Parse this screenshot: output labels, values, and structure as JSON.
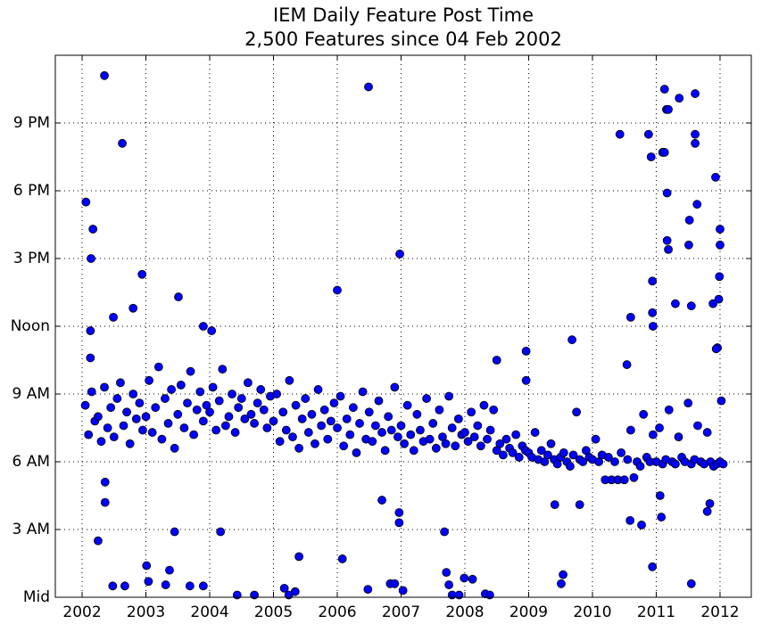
{
  "chart_data": {
    "type": "scatter",
    "title": "IEM Daily Feature Post Time",
    "subtitle": "2,500 Features since 04 Feb 2002",
    "color": "#0000ff",
    "grid": true,
    "xlim": [
      2001.58,
      2012.49
    ],
    "ylim": [
      0,
      24
    ],
    "xticks": [
      2002,
      2003,
      2004,
      2005,
      2006,
      2007,
      2008,
      2009,
      2010,
      2011,
      2012
    ],
    "yticks": [
      {
        "value": 0,
        "label": "Mid"
      },
      {
        "value": 3,
        "label": "3 AM"
      },
      {
        "value": 6,
        "label": "6 AM"
      },
      {
        "value": 9,
        "label": "9 AM"
      },
      {
        "value": 12,
        "label": "Noon"
      },
      {
        "value": 15,
        "label": "3 PM"
      },
      {
        "value": 18,
        "label": "6 PM"
      },
      {
        "value": 21,
        "label": "9 PM"
      }
    ],
    "x": [
      2002.05,
      2002.1,
      2002.15,
      2002.2,
      2002.25,
      2002.3,
      2002.35,
      2002.4,
      2002.45,
      2002.5,
      2002.55,
      2002.6,
      2002.65,
      2002.7,
      2002.75,
      2002.8,
      2002.85,
      2002.9,
      2002.95,
      2003.0,
      2003.05,
      2003.1,
      2003.15,
      2003.2,
      2003.25,
      2003.3,
      2003.35,
      2003.4,
      2003.45,
      2003.5,
      2003.55,
      2003.6,
      2003.65,
      2003.7,
      2003.75,
      2003.8,
      2003.85,
      2003.9,
      2003.95,
      2004.0,
      2004.05,
      2004.1,
      2004.15,
      2004.2,
      2004.25,
      2004.3,
      2004.35,
      2004.4,
      2004.45,
      2004.5,
      2004.55,
      2004.6,
      2004.65,
      2004.7,
      2004.75,
      2004.8,
      2004.85,
      2004.9,
      2004.95,
      2005.0,
      2005.05,
      2005.1,
      2005.15,
      2005.2,
      2005.25,
      2005.3,
      2005.35,
      2005.4,
      2005.45,
      2005.5,
      2005.55,
      2005.6,
      2005.65,
      2005.7,
      2005.75,
      2005.8,
      2005.85,
      2005.9,
      2005.95,
      2006.0,
      2006.05,
      2006.1,
      2006.15,
      2006.2,
      2006.25,
      2006.3,
      2006.35,
      2006.4,
      2006.45,
      2006.5,
      2006.55,
      2006.6,
      2006.65,
      2006.7,
      2006.75,
      2006.8,
      2006.85,
      2006.9,
      2006.95,
      2007.0,
      2007.05,
      2007.1,
      2007.15,
      2007.2,
      2007.25,
      2007.3,
      2007.35,
      2007.4,
      2007.45,
      2007.5,
      2007.55,
      2007.6,
      2007.65,
      2007.7,
      2007.75,
      2007.8,
      2007.85,
      2007.9,
      2007.95,
      2008.0,
      2008.05,
      2008.1,
      2008.15,
      2008.2,
      2008.25,
      2008.3,
      2008.35,
      2008.4,
      2008.45,
      2008.5,
      2008.55,
      2008.6,
      2008.65,
      2008.7,
      2008.75,
      2008.8,
      2008.85,
      2008.9,
      2008.95,
      2009.0,
      2009.05,
      2009.1,
      2009.15,
      2009.2,
      2009.25,
      2009.3,
      2009.35,
      2009.4,
      2009.45,
      2009.5,
      2009.55,
      2009.6,
      2009.65,
      2009.7,
      2009.75,
      2009.8,
      2009.85,
      2009.9,
      2009.95,
      2010.0,
      2010.05,
      2010.1,
      2010.15,
      2010.2,
      2010.25,
      2010.3,
      2010.35,
      2010.4,
      2010.45,
      2010.5,
      2010.55,
      2010.6,
      2010.65,
      2010.7,
      2010.75,
      2010.8,
      2010.85,
      2010.9,
      2010.95,
      2011.0,
      2011.05,
      2011.1,
      2011.15,
      2011.2,
      2011.25,
      2011.3,
      2011.35,
      2011.4,
      2011.45,
      2011.5,
      2011.55,
      2011.6,
      2011.65,
      2011.7,
      2011.75,
      2011.8,
      2011.85,
      2011.9,
      2011.95,
      2012.0,
      2012.05,
      2002.06,
      2002.17,
      2002.14,
      2002.13,
      2002.13,
      2002.35,
      2002.63,
      2002.25,
      2002.36,
      2002.36,
      2002.48,
      2002.67,
      2002.49,
      2002.8,
      2002.94,
      2003.01,
      2003.04,
      2003.37,
      2003.51,
      2003.45,
      2003.31,
      2003.69,
      2003.9,
      2004.03,
      2003.9,
      2004.17,
      2004.43,
      2004.7,
      2006.0,
      2006.08,
      2005.17,
      2005.24,
      2005.34,
      2005.4,
      2006.49,
      2006.48,
      2006.98,
      2006.83,
      2006.9,
      2007.03,
      2006.97,
      2006.97,
      2006.7,
      2007.68,
      2007.71,
      2007.75,
      2007.8,
      2007.91,
      2007.99,
      2008.12,
      2008.32,
      2008.39,
      2008.5,
      2008.96,
      2008.96,
      2009.51,
      2009.54,
      2009.68,
      2009.41,
      2009.8,
      2010.43,
      2010.6,
      2010.54,
      2010.59,
      2010.77,
      2010.88,
      2010.92,
      2010.94,
      2010.94,
      2010.95,
      2010.94,
      2011.08,
      2011.06,
      2011.13,
      2011.16,
      2011.19,
      2011.1,
      2011.13,
      2011.17,
      2011.17,
      2011.19,
      2011.3,
      2011.36,
      2011.61,
      2011.61,
      2011.61,
      2011.52,
      2011.51,
      2011.64,
      2011.55,
      2011.55,
      2011.93,
      2012.0,
      2012.0,
      2011.99,
      2011.98,
      2011.89,
      2011.96,
      2011.94,
      2011.84,
      2011.8,
      2012.02
    ],
    "values": [
      8.5,
      7.2,
      9.1,
      7.8,
      8.0,
      6.9,
      9.3,
      7.5,
      8.4,
      7.1,
      8.8,
      9.5,
      7.6,
      8.2,
      6.8,
      9.0,
      7.9,
      8.6,
      7.4,
      8.0,
      9.6,
      7.3,
      8.4,
      10.2,
      7.0,
      8.8,
      7.7,
      9.2,
      6.6,
      8.1,
      9.4,
      7.5,
      8.6,
      10.0,
      7.2,
      8.3,
      9.1,
      7.8,
      8.5,
      8.2,
      9.3,
      7.4,
      8.7,
      10.1,
      7.6,
      8.0,
      9.0,
      7.3,
      8.4,
      8.8,
      7.9,
      9.5,
      8.1,
      7.7,
      8.6,
      9.2,
      8.3,
      7.5,
      8.9,
      7.8,
      9.0,
      6.9,
      8.2,
      7.4,
      9.6,
      7.1,
      8.5,
      6.6,
      7.9,
      8.8,
      7.3,
      8.1,
      6.8,
      9.2,
      7.6,
      8.3,
      7.0,
      7.8,
      8.6,
      7.5,
      8.9,
      6.7,
      7.9,
      7.2,
      8.4,
      6.4,
      7.7,
      9.1,
      7.0,
      8.2,
      6.9,
      7.6,
      8.7,
      7.3,
      6.5,
      8.0,
      7.4,
      9.3,
      7.1,
      7.6,
      6.8,
      8.5,
      7.2,
      6.5,
      8.1,
      7.4,
      6.9,
      8.8,
      7.0,
      7.7,
      6.6,
      8.3,
      7.1,
      6.8,
      8.9,
      7.5,
      6.7,
      7.9,
      7.2,
      7.3,
      6.9,
      8.2,
      7.1,
      7.6,
      6.7,
      8.5,
      7.0,
      7.4,
      8.3,
      6.5,
      6.8,
      6.3,
      7.0,
      6.6,
      6.4,
      7.2,
      6.2,
      6.7,
      6.5,
      6.4,
      6.2,
      7.3,
      6.1,
      6.5,
      6.0,
      6.3,
      6.8,
      6.1,
      5.9,
      6.2,
      6.4,
      6.0,
      5.8,
      6.3,
      8.2,
      6.1,
      6.0,
      6.5,
      6.2,
      6.1,
      7.0,
      6.0,
      6.3,
      5.2,
      6.2,
      5.2,
      6.0,
      5.2,
      6.4,
      5.2,
      6.1,
      7.4,
      5.3,
      6.0,
      5.8,
      8.1,
      6.2,
      6.0,
      7.2,
      6.0,
      7.5,
      5.9,
      6.1,
      8.3,
      6.0,
      5.9,
      7.1,
      6.2,
      6.0,
      8.6,
      5.9,
      6.1,
      7.6,
      6.0,
      5.9,
      7.3,
      6.0,
      5.8,
      5.9,
      6.0,
      5.9,
      17.5,
      16.3,
      15.0,
      11.8,
      10.6,
      23.1,
      20.1,
      2.5,
      4.2,
      5.1,
      0.5,
      0.5,
      12.4,
      12.8,
      14.3,
      1.4,
      0.7,
      1.2,
      13.3,
      2.9,
      0.55,
      0.5,
      12.0,
      11.8,
      0.5,
      2.9,
      0.1,
      0.1,
      13.6,
      1.7,
      0.4,
      0.1,
      0.25,
      1.8,
      22.6,
      0.35,
      15.2,
      0.6,
      0.6,
      0.3,
      3.75,
      3.3,
      4.3,
      2.9,
      1.1,
      0.55,
      0.1,
      0.1,
      0.85,
      0.8,
      0.15,
      0.1,
      10.5,
      10.9,
      9.6,
      0.6,
      1.0,
      11.4,
      4.1,
      4.1,
      20.5,
      12.4,
      10.3,
      3.4,
      3.2,
      20.5,
      19.5,
      14.0,
      12.6,
      12.0,
      1.35,
      3.55,
      4.5,
      22.5,
      21.6,
      21.6,
      19.7,
      19.7,
      17.9,
      15.8,
      15.4,
      13.0,
      22.1,
      22.3,
      20.5,
      20.1,
      16.7,
      15.6,
      17.4,
      12.9,
      0.6,
      18.6,
      16.3,
      15.6,
      14.2,
      13.2,
      13.0,
      11.05,
      11.0,
      4.15,
      3.8,
      8.7
    ]
  }
}
